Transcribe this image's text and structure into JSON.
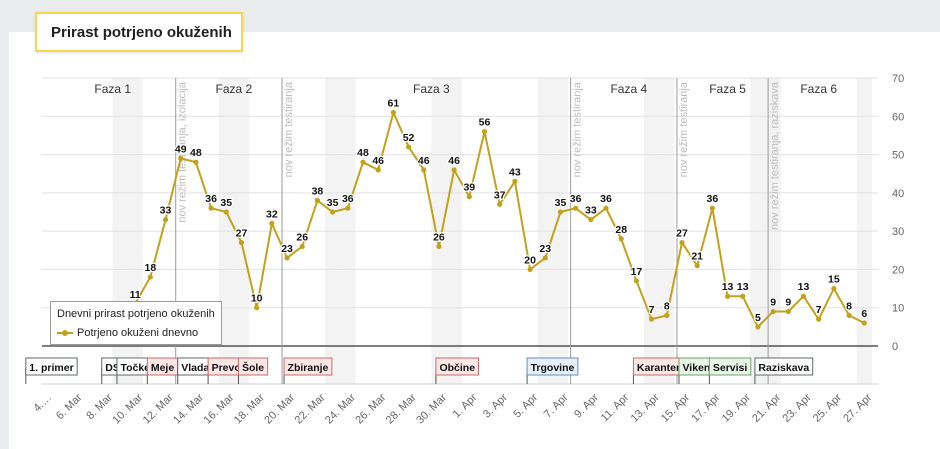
{
  "page": {
    "title": "Prirast potrjeno okuženih"
  },
  "chart_data": {
    "type": "line",
    "legend": {
      "title": "Dnevni prirast potrjeno okuženih",
      "placement": "bottom-left"
    },
    "x": [
      "4.…",
      "5. Mar",
      "6. Mar",
      "7. Mar",
      "8. Mar",
      "9. Mar",
      "10. Mar",
      "11. Mar",
      "12. Mar",
      "13. Mar",
      "14. Mar",
      "15. Mar",
      "16. Mar",
      "17. Mar",
      "18. Mar",
      "19. Mar",
      "20. Mar",
      "21. Mar",
      "22. Mar",
      "23. Mar",
      "24. Mar",
      "25. Mar",
      "26. Mar",
      "27. Mar",
      "28. Mar",
      "29. Mar",
      "30. Mar",
      "31. Mar",
      "1. Apr",
      "2. Apr",
      "3. Apr",
      "4. Apr",
      "5. Apr",
      "6. Apr",
      "7. Apr",
      "8. Apr",
      "9. Apr",
      "10. Apr",
      "11. Apr",
      "12. Apr",
      "13. Apr",
      "14. Apr",
      "15. Apr",
      "16. Apr",
      "17. Apr",
      "18. Apr",
      "19. Apr",
      "20. Apr",
      "21. Apr",
      "22. Apr",
      "23. Apr",
      "24. Apr",
      "25. Apr",
      "26. Apr",
      "27. Apr"
    ],
    "x_tick_labels": [
      "4.…",
      "6. Mar",
      "8. Mar",
      "10. Mar",
      "12. Mar",
      "14. Mar",
      "16. Mar",
      "18. Mar",
      "20. Mar",
      "22. Mar",
      "24. Mar",
      "26. Mar",
      "28. Mar",
      "30. Mar",
      "1. Apr",
      "3. Apr",
      "5. Apr",
      "7. Apr",
      "9. Apr",
      "11. Apr",
      "13. Apr",
      "15. Apr",
      "17. Apr",
      "19. Apr",
      "21. Apr",
      "23. Apr",
      "25. Apr",
      "27. Apr"
    ],
    "series": [
      {
        "name": "Potrjeno okuženi dnevno",
        "color": "#c2a21b",
        "values": [
          null,
          null,
          null,
          null,
          null,
          null,
          11,
          18,
          33,
          49,
          48,
          36,
          35,
          27,
          10,
          32,
          23,
          26,
          38,
          35,
          36,
          48,
          46,
          61,
          52,
          46,
          26,
          46,
          39,
          56,
          37,
          43,
          20,
          23,
          35,
          36,
          33,
          36,
          28,
          17,
          7,
          8,
          27,
          21,
          36,
          13,
          13,
          5,
          9,
          9,
          13,
          7,
          15,
          8,
          6
        ]
      }
    ],
    "y_ticks": [
      0,
      10,
      20,
      30,
      40,
      50,
      60,
      70
    ],
    "ylim": [
      0,
      70
    ],
    "grid": true,
    "phases": [
      {
        "label": "Faza 1",
        "start": "4. Mar",
        "end": "13. Mar"
      },
      {
        "label": "Faza 2",
        "start": "13. Mar",
        "end": "20. Mar"
      },
      {
        "label": "Faza 3",
        "start": "20. Mar",
        "end": "8. Apr"
      },
      {
        "label": "Faza 4",
        "start": "8. Apr",
        "end": "15. Apr"
      },
      {
        "label": "Faza 5",
        "start": "15. Apr",
        "end": "21. Apr"
      },
      {
        "label": "Faza 6",
        "start": "21. Apr",
        "end": "27. Apr"
      }
    ],
    "vertical_notes": [
      {
        "text": "nov režim testiranja, izolacija",
        "at": "13. Mar"
      },
      {
        "text": "nov režim testiranja",
        "at": "20. Mar"
      },
      {
        "text": "nov režim testiranja",
        "at": "8. Apr"
      },
      {
        "text": "nov režim testiranja",
        "at": "15. Apr"
      },
      {
        "text": "nov režim testiranja, raziskava",
        "at": "21. Apr"
      }
    ],
    "events": [
      {
        "label": "1. primer",
        "at": "4. Mar",
        "color": "#ffffff",
        "border": "#5f6a6a"
      },
      {
        "label": "DSO",
        "at": "8. Mar",
        "color": "#ffffff",
        "border": "#5f6a6a"
      },
      {
        "label": "Točke",
        "at": "9. Mar",
        "color": "#ffffff",
        "border": "#5f6a6a"
      },
      {
        "label": "Meje",
        "at": "11. Mar",
        "color": "#fce6e6",
        "border": "#c96b6b"
      },
      {
        "label": "Vlada",
        "at": "13. Mar",
        "color": "#ffffff",
        "border": "#5f6a6a"
      },
      {
        "label": "Prevozi",
        "at": "15. Mar",
        "color": "#fce6e6",
        "border": "#c96b6b"
      },
      {
        "label": "Šole",
        "at": "17. Mar",
        "color": "#fce6e6",
        "border": "#c96b6b"
      },
      {
        "label": "Zbiranje",
        "at": "20. Mar",
        "color": "#fce6e6",
        "border": "#c96b6b"
      },
      {
        "label": "Občine",
        "at": "30. Mar",
        "color": "#fce6e6",
        "border": "#c96b6b"
      },
      {
        "label": "Trgovine",
        "at": "5. Apr",
        "color": "#e6f0fa",
        "border": "#6b8cb5"
      },
      {
        "label": "Karantena",
        "at": "12. Apr",
        "color": "#fce6e6",
        "border": "#c96b6b"
      },
      {
        "label": "Vikendi",
        "at": "15. Apr",
        "color": "#e8f5e6",
        "border": "#6da36a"
      },
      {
        "label": "Servisi",
        "at": "17. Apr",
        "color": "#e8f5e6",
        "border": "#6da36a"
      },
      {
        "label": "Raziskava",
        "at": "20. Apr",
        "color": "#ffffff",
        "border": "#5f6a6a"
      }
    ]
  }
}
